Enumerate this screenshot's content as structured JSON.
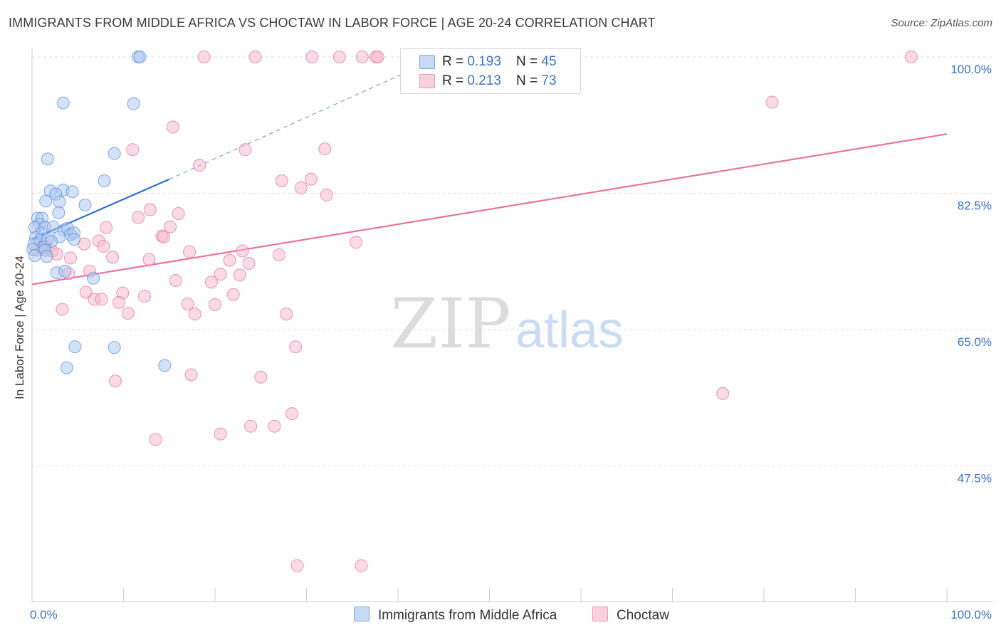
{
  "header": {
    "title": "IMMIGRANTS FROM MIDDLE AFRICA VS CHOCTAW IN LABOR FORCE | AGE 20-24 CORRELATION CHART",
    "source": "Source: ZipAtlas.com"
  },
  "watermark": {
    "zip": "ZIP",
    "atlas": "atlas"
  },
  "legend": {
    "rows": [
      {
        "r_label": "R = ",
        "r_value": "0.193",
        "n_label": "N = ",
        "n_value": "45",
        "color": "#a9c6f0"
      },
      {
        "r_label": "R = ",
        "r_value": "0.213",
        "n_label": "N = ",
        "n_value": "73",
        "color": "#f5b8cc"
      }
    ]
  },
  "chart_data": {
    "type": "scatter",
    "ylabel": "In Labor Force | Age 20-24",
    "xlim": [
      0,
      100
    ],
    "ylim": [
      30,
      102
    ],
    "x_tick_labels": [
      {
        "v": 0,
        "label": "0.0%"
      },
      {
        "v": 100,
        "label": "100.0%"
      }
    ],
    "y_ticks": [
      {
        "v": 100.0,
        "label": "100.0%"
      },
      {
        "v": 82.5,
        "label": "82.5%"
      },
      {
        "v": 65.0,
        "label": "65.0%"
      },
      {
        "v": 47.5,
        "label": "47.5%"
      }
    ],
    "grid": true,
    "series": [
      {
        "name": "Immigrants from Middle Africa",
        "color": "#5b8fd9",
        "fill": "#a9c6f0",
        "points": [
          [
            11.6,
            100.0
          ],
          [
            11.8,
            100.0
          ],
          [
            3.4,
            94.1
          ],
          [
            11.1,
            94.0
          ],
          [
            9.0,
            87.6
          ],
          [
            1.7,
            86.9
          ],
          [
            7.9,
            84.1
          ],
          [
            2.0,
            82.8
          ],
          [
            3.4,
            82.9
          ],
          [
            4.4,
            82.7
          ],
          [
            2.6,
            82.4
          ],
          [
            1.5,
            81.5
          ],
          [
            3.0,
            81.4
          ],
          [
            5.8,
            81.0
          ],
          [
            2.9,
            80.0
          ],
          [
            0.6,
            79.3
          ],
          [
            1.1,
            79.3
          ],
          [
            0.8,
            78.5
          ],
          [
            0.3,
            78.1
          ],
          [
            1.4,
            78.1
          ],
          [
            2.3,
            78.2
          ],
          [
            3.5,
            77.8
          ],
          [
            3.9,
            78.0
          ],
          [
            1.0,
            77.4
          ],
          [
            4.2,
            77.2
          ],
          [
            4.6,
            77.4
          ],
          [
            0.4,
            76.8
          ],
          [
            3.0,
            76.9
          ],
          [
            0.9,
            76.5
          ],
          [
            1.7,
            76.6
          ],
          [
            2.1,
            76.3
          ],
          [
            0.2,
            76.0
          ],
          [
            1.3,
            75.6
          ],
          [
            0.1,
            75.3
          ],
          [
            1.4,
            75.2
          ],
          [
            0.3,
            74.5
          ],
          [
            1.6,
            74.4
          ],
          [
            4.6,
            76.6
          ],
          [
            2.7,
            72.3
          ],
          [
            3.6,
            72.5
          ],
          [
            6.7,
            71.6
          ],
          [
            4.7,
            62.8
          ],
          [
            9.0,
            62.7
          ],
          [
            3.8,
            60.1
          ],
          [
            14.5,
            60.4
          ]
        ],
        "trend": {
          "x0": 0,
          "y0": 76.6,
          "x1": 15,
          "y1": 84.3,
          "dash_x1": 45,
          "dash_y1": 100.2
        }
      },
      {
        "name": "Choctaw",
        "color": "#e8729a",
        "fill": "#f5b8cc",
        "points": [
          [
            18.8,
            100.0
          ],
          [
            24.4,
            100.0
          ],
          [
            30.6,
            100.0
          ],
          [
            33.6,
            100.0
          ],
          [
            36.1,
            100.0
          ],
          [
            37.6,
            100.0
          ],
          [
            37.8,
            100.0
          ],
          [
            96.1,
            100.0
          ],
          [
            80.9,
            94.2
          ],
          [
            15.4,
            91.0
          ],
          [
            11.0,
            88.1
          ],
          [
            23.3,
            88.1
          ],
          [
            32.0,
            88.2
          ],
          [
            18.3,
            86.1
          ],
          [
            27.3,
            84.1
          ],
          [
            30.5,
            84.3
          ],
          [
            29.4,
            83.2
          ],
          [
            32.2,
            82.3
          ],
          [
            12.9,
            80.4
          ],
          [
            16.0,
            79.9
          ],
          [
            11.6,
            79.4
          ],
          [
            8.1,
            78.1
          ],
          [
            15.1,
            78.2
          ],
          [
            14.2,
            77.0
          ],
          [
            14.4,
            76.9
          ],
          [
            7.3,
            76.4
          ],
          [
            35.4,
            76.2
          ],
          [
            5.7,
            76.0
          ],
          [
            7.8,
            75.7
          ],
          [
            1.5,
            75.9
          ],
          [
            1.1,
            75.4
          ],
          [
            0.5,
            75.2
          ],
          [
            2.2,
            75.1
          ],
          [
            2.7,
            74.7
          ],
          [
            23.0,
            75.1
          ],
          [
            27.0,
            74.6
          ],
          [
            8.8,
            74.3
          ],
          [
            12.8,
            74.0
          ],
          [
            4.2,
            74.2
          ],
          [
            21.6,
            73.9
          ],
          [
            6.3,
            72.5
          ],
          [
            4.0,
            72.2
          ],
          [
            20.6,
            72.1
          ],
          [
            22.7,
            72.0
          ],
          [
            15.7,
            71.3
          ],
          [
            19.6,
            71.1
          ],
          [
            5.9,
            69.8
          ],
          [
            9.9,
            69.7
          ],
          [
            22.0,
            69.5
          ],
          [
            12.3,
            69.3
          ],
          [
            6.8,
            68.9
          ],
          [
            7.6,
            68.9
          ],
          [
            9.5,
            68.5
          ],
          [
            17.0,
            68.3
          ],
          [
            20.0,
            68.2
          ],
          [
            3.3,
            67.6
          ],
          [
            10.5,
            67.1
          ],
          [
            17.8,
            67.0
          ],
          [
            27.8,
            67.0
          ],
          [
            28.8,
            62.8
          ],
          [
            17.4,
            59.2
          ],
          [
            25.0,
            58.9
          ],
          [
            9.1,
            58.4
          ],
          [
            75.5,
            56.8
          ],
          [
            28.4,
            54.2
          ],
          [
            23.9,
            52.6
          ],
          [
            26.5,
            52.6
          ],
          [
            20.6,
            51.6
          ],
          [
            13.5,
            50.9
          ],
          [
            29.0,
            34.7
          ],
          [
            36.0,
            34.7
          ],
          [
            17.2,
            75.0
          ],
          [
            23.7,
            73.5
          ]
        ],
        "trend": {
          "x0": 0,
          "y0": 70.8,
          "x1": 100,
          "y1": 90.1
        }
      }
    ]
  }
}
